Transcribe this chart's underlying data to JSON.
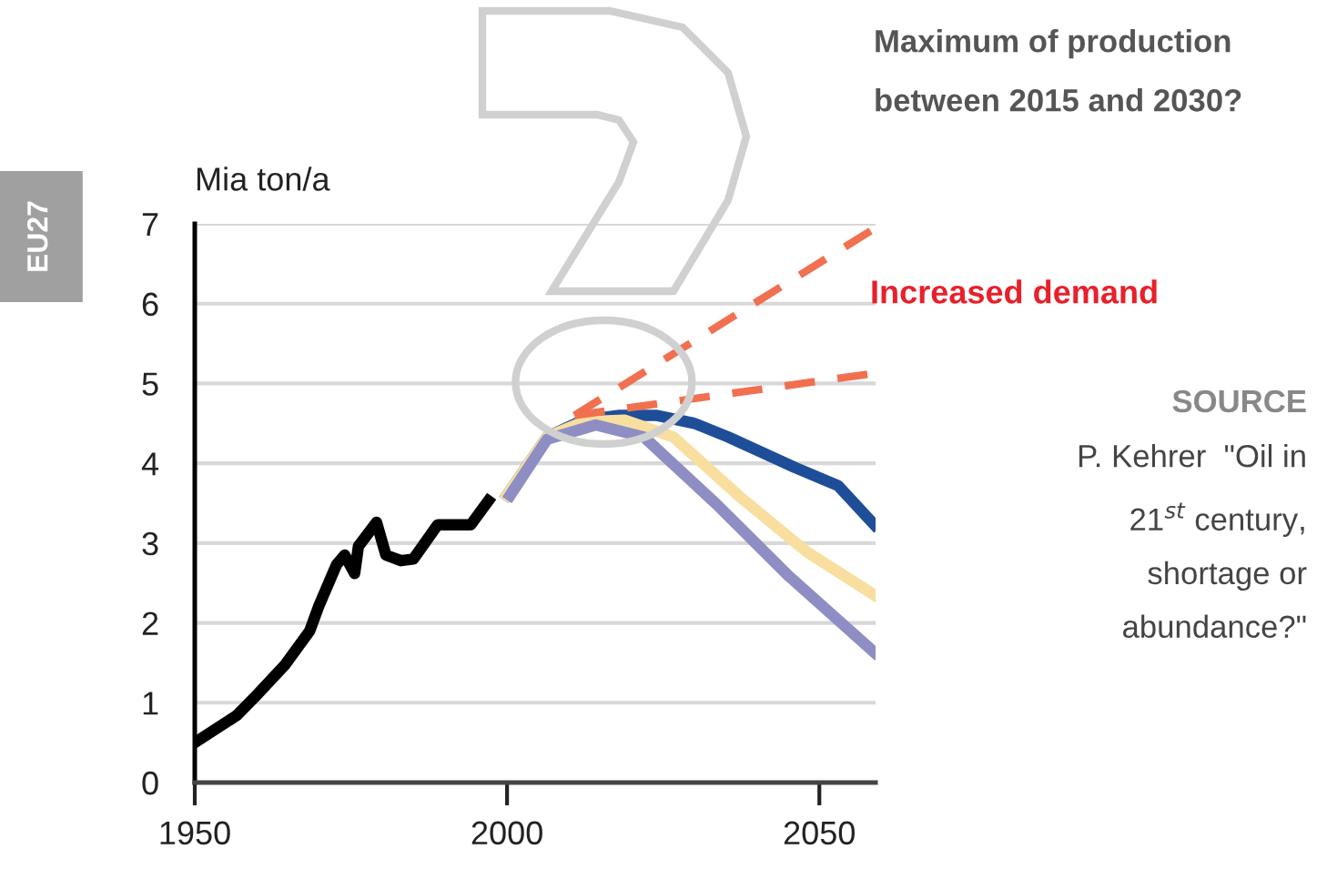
{
  "chart_data": {
    "type": "line",
    "title": "Maximum of production\nbetween 2015 and 2030?",
    "ylabel": "Mia ton/a",
    "xlim": [
      1950,
      2059
    ],
    "xticks": [
      1950,
      2000,
      2050
    ],
    "ylim": [
      0,
      7
    ],
    "yticks": [
      0,
      1,
      2,
      3,
      4,
      5,
      6,
      7
    ],
    "grid": "y",
    "legend": false,
    "marker": "none",
    "series": [
      {
        "color": "#000000",
        "line_style": "solid",
        "x": [
          1950,
          1956.7,
          1959.6,
          1964.5,
          1968.4,
          1969.8,
          1972.7,
          1974,
          1975.6,
          1976.2,
          1979.1,
          1980.6,
          1983,
          1985,
          1988.9,
          1994.2,
          1997
        ],
        "values": [
          0.5,
          0.84,
          1.07,
          1.48,
          1.9,
          2.2,
          2.73,
          2.85,
          2.62,
          2.96,
          3.26,
          2.85,
          2.78,
          2.8,
          3.23,
          3.23,
          3.53
        ]
      },
      {
        "color": "#1f4e99",
        "line_style": "solid",
        "x": [
          2000,
          2006.4,
          2012.2,
          2018,
          2024,
          2030,
          2035.4,
          2046,
          2053,
          2058.8
        ],
        "values": [
          3.6,
          4.33,
          4.54,
          4.6,
          4.6,
          4.5,
          4.33,
          3.95,
          3.72,
          3.23
        ]
      },
      {
        "color": "#f8dfa0",
        "line_style": "solid",
        "x": [
          2000,
          2006.4,
          2012.2,
          2018.8,
          2026.6,
          2037.3,
          2048,
          2058.8
        ],
        "values": [
          3.6,
          4.33,
          4.52,
          4.54,
          4.33,
          3.58,
          2.89,
          2.35
        ]
      },
      {
        "color": "#8e8ec4",
        "line_style": "solid",
        "x": [
          2000.5,
          2006.4,
          2014.2,
          2021.9,
          2033.5,
          2045.2,
          2058.8
        ],
        "values": [
          3.6,
          4.3,
          4.48,
          4.33,
          3.49,
          2.58,
          1.63
        ]
      },
      {
        "color": "#f07050",
        "line_style": "dashed",
        "x": [
          2010.8,
          2059
        ],
        "values": [
          4.6,
          6.95
        ]
      },
      {
        "color": "#f07050",
        "line_style": "dashed",
        "x": [
          2010.8,
          2059
        ],
        "values": [
          4.6,
          5.13
        ]
      }
    ],
    "annotations": [
      "Increased demand",
      "SOURCE",
      "P. Kehrer  \"Oil in\n21$^{st}$ century,\nshortage or\nabundance?\"",
      "EU27"
    ]
  }
}
